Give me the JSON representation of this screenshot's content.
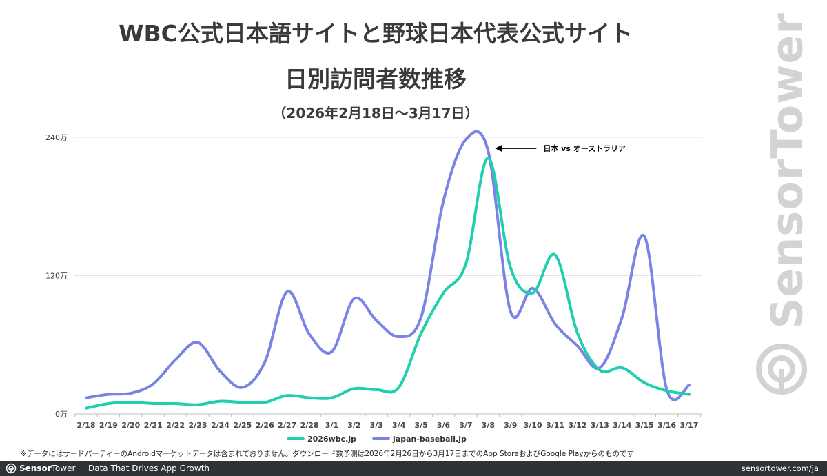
{
  "title_line1": "WBC公式日本語サイトと野球日本代表公式サイト",
  "title_line2": "日別訪問者数推移",
  "title_line3": "（2026年2月18日〜3月17日）",
  "watermark": "SensorTower",
  "footnote": "※データにはサードパーティーのAndroidマーケットデータは含まれておりません。ダウンロード数予測は2026年2月26日から3月17日までのApp StoreおよびGoogle Playからのものです",
  "footer": {
    "brand_left": "Sensor",
    "brand_right": "Tower",
    "tagline": "Data That Drives App Growth",
    "url": "sensortower.com/ja"
  },
  "chart_data": {
    "type": "line",
    "title": "WBC公式日本語サイトと野球日本代表公式サイト 日別訪問者数推移",
    "categories": [
      "2/18",
      "2/19",
      "2/20",
      "2/21",
      "2/22",
      "2/23",
      "2/24",
      "2/25",
      "2/26",
      "2/27",
      "2/28",
      "3/1",
      "3/2",
      "3/3",
      "3/4",
      "3/5",
      "3/6",
      "3/7",
      "3/8",
      "3/9",
      "3/10",
      "3/11",
      "3/12",
      "3/13",
      "3/14",
      "3/15",
      "3/16",
      "3/17"
    ],
    "ylim": [
      0,
      240
    ],
    "yticks": [
      0,
      120,
      240
    ],
    "ytick_labels": [
      "0万",
      "120万",
      "240万"
    ],
    "series": [
      {
        "name": "2026wbc.jp",
        "color": "#1fcfae",
        "values": [
          5,
          9,
          10,
          9,
          9,
          8,
          11,
          10,
          10,
          16,
          14,
          14,
          22,
          21,
          23,
          70,
          105,
          130,
          222,
          127,
          105,
          138,
          70,
          38,
          40,
          27,
          20,
          17
        ]
      },
      {
        "name": "japan-baseball.jp",
        "color": "#7b83e6",
        "values": [
          14,
          17,
          18,
          26,
          47,
          62,
          37,
          23,
          45,
          106,
          69,
          54,
          100,
          81,
          67,
          84,
          185,
          238,
          228,
          89,
          109,
          78,
          59,
          40,
          84,
          154,
          21,
          25
        ]
      }
    ],
    "annotation": {
      "text": "日本 vs オーストラリア",
      "x": "3/8",
      "y": 228
    },
    "legend_position": "bottom",
    "grid": true
  }
}
